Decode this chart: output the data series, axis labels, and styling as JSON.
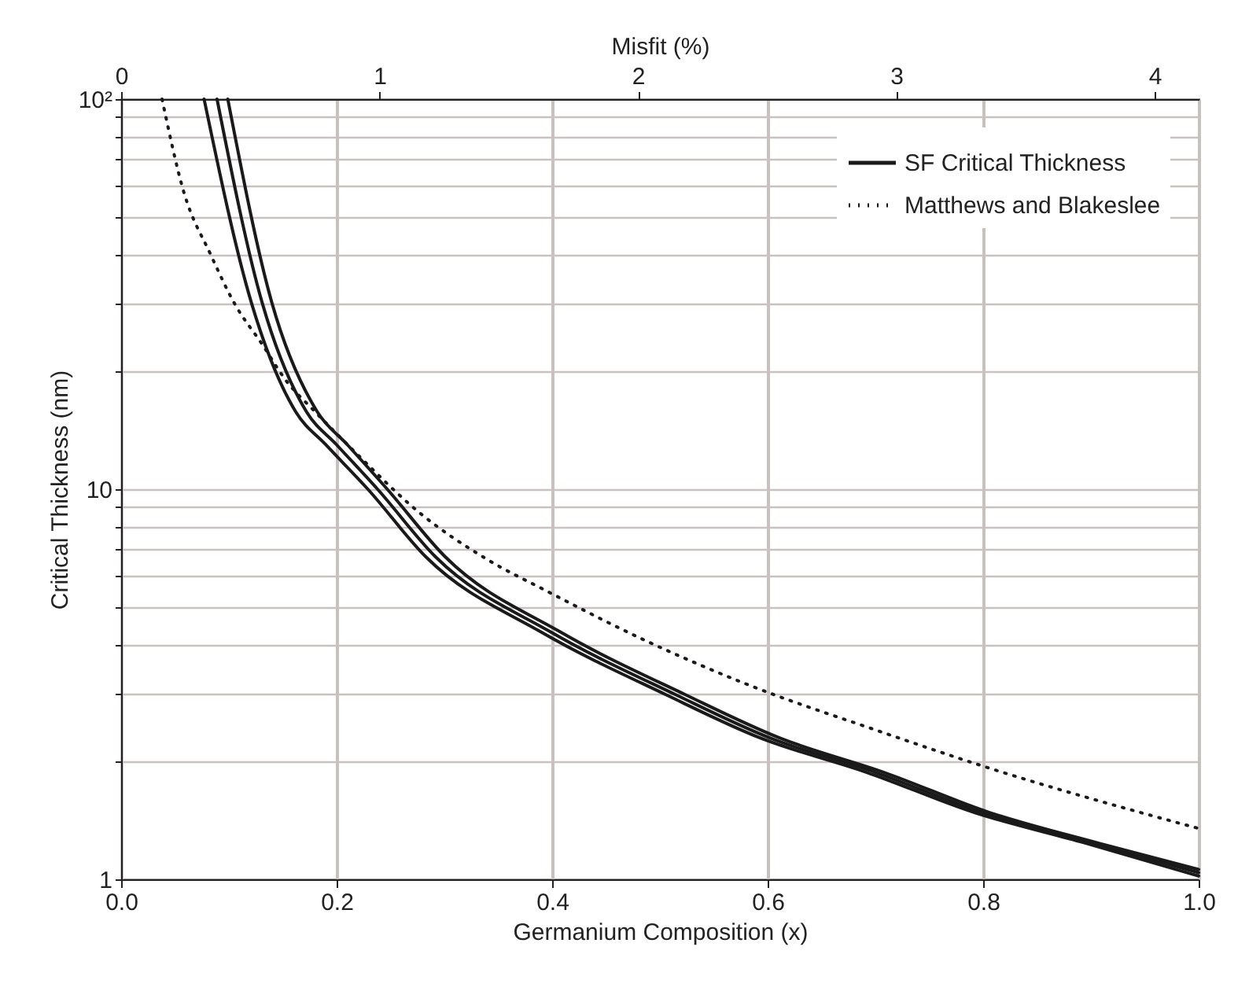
{
  "chart_data": {
    "type": "line",
    "xlabel": "Germanium Composition (x)",
    "ylabel": "Critical Thickness (nm)",
    "x2label": "Misfit (%)",
    "log": "y",
    "grid": true,
    "legend": "top right",
    "marker": "none",
    "xlim": [
      0,
      1
    ],
    "xticks": [
      {
        "value": 0,
        "label": "0.0"
      },
      0.2,
      0.4,
      0.6,
      0.8,
      {
        "value": 1,
        "label": "1.0"
      }
    ],
    "x2lim": [
      0,
      4.17
    ],
    "x2ticks": [
      0,
      1,
      2,
      3,
      4
    ],
    "ylim": [
      1,
      100
    ],
    "yticks": [
      1,
      {
        "value": 2,
        "label": null
      },
      {
        "value": 3,
        "label": null
      },
      {
        "value": 4,
        "label": null
      },
      {
        "value": 5,
        "label": null
      },
      {
        "value": 6,
        "label": null
      },
      {
        "value": 7,
        "label": null
      },
      {
        "value": 8,
        "label": null
      },
      {
        "value": 9,
        "label": null
      },
      10,
      {
        "value": 20,
        "label": null
      },
      {
        "value": 30,
        "label": null
      },
      {
        "value": 40,
        "label": null
      },
      {
        "value": 50,
        "label": null
      },
      {
        "value": 60,
        "label": null
      },
      {
        "value": 70,
        "label": null
      },
      {
        "value": 80,
        "label": null
      },
      {
        "value": 90,
        "label": null
      },
      {
        "value": 100,
        "label": "10²"
      }
    ],
    "series": [
      {
        "name": "SF Critical Thickness",
        "color": "#1a1a1a",
        "line_style": "solid",
        "x": [
          0.089,
          0.131,
          0.172,
          0.2,
          0.238,
          0.292,
          0.399,
          0.515,
          0.601,
          0.7,
          0.8,
          0.9,
          1.0
        ],
        "values": [
          100,
          30,
          15.8,
          13,
          10,
          6.7,
          4.3,
          2.97,
          2.31,
          1.88,
          1.48,
          1.24,
          1.04
        ]
      },
      {
        "color": "#1a1a1a",
        "line_style": "solid",
        "x": [
          0.077,
          0.121,
          0.162,
          0.19,
          0.229,
          0.283,
          0.39,
          0.506,
          0.592,
          0.692,
          0.793,
          0.894,
          1.0
        ],
        "values": [
          100,
          30,
          15.8,
          13,
          10,
          6.7,
          4.3,
          2.97,
          2.31,
          1.88,
          1.48,
          1.24,
          1.02
        ]
      },
      {
        "color": "#1a1a1a",
        "line_style": "solid",
        "x": [
          0.099,
          0.14,
          0.182,
          0.21,
          0.247,
          0.301,
          0.408,
          0.524,
          0.61,
          0.708,
          0.807,
          0.906,
          1.0
        ],
        "values": [
          100,
          30,
          15.8,
          13,
          10,
          6.7,
          4.3,
          2.97,
          2.31,
          1.88,
          1.48,
          1.24,
          1.06
        ]
      },
      {
        "name": "Matthews and Blakeslee",
        "color": "#1a1a1a",
        "line_style": "dotted",
        "x": [
          0.038,
          0.058,
          0.083,
          0.105,
          0.131,
          0.153,
          0.18,
          0.219,
          0.277,
          0.34,
          0.394,
          0.486,
          0.581,
          0.701,
          0.8,
          1.0
        ],
        "values": [
          100,
          58,
          40,
          30,
          23.5,
          19,
          15.8,
          12.3,
          8.7,
          6.6,
          5.5,
          4.1,
          3.16,
          2.41,
          1.95,
          1.35
        ]
      }
    ]
  }
}
